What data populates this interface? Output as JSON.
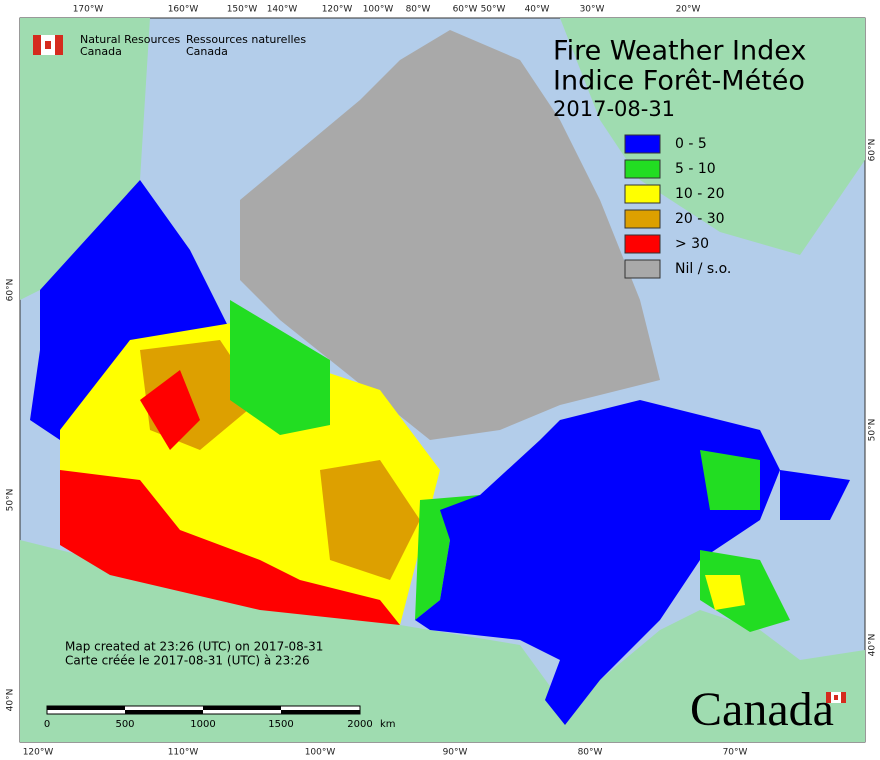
{
  "header": {
    "agency_en": [
      "Natural Resources",
      "Canada"
    ],
    "agency_fr": [
      "Ressources naturelles",
      "Canada"
    ]
  },
  "title": [
    "Fire Weather Index",
    "Indice Forêt-Météo"
  ],
  "date": "2017-08-31",
  "legend": [
    {
      "label": "0 - 5",
      "color": "#0000ff"
    },
    {
      "label": "5 - 10",
      "color": "#22dd22"
    },
    {
      "label": "10 - 20",
      "color": "#ffff00"
    },
    {
      "label": "20 - 30",
      "color": "#dda000"
    },
    {
      "label": "> 30",
      "color": "#ff0000"
    },
    {
      "label": "Nil / s.o.",
      "color": "#a9a9a9"
    }
  ],
  "top_longitudes": [
    "170°W",
    "160°W",
    "150°W",
    "140°W",
    "120°W",
    "100°W",
    "80°W",
    "60°W",
    "50°W",
    "40°W",
    "30°W",
    "20°W"
  ],
  "bottom_longitudes": [
    "120°W",
    "110°W",
    "100°W",
    "90°W",
    "80°W",
    "70°W"
  ],
  "left_latitudes": [
    "60°N",
    "50°N",
    "40°N"
  ],
  "right_latitudes": [
    "60°N",
    "50°N",
    "40°N"
  ],
  "notes": [
    "Map created at 23:26 (UTC) on 2017-08-31",
    "Carte créée le 2017-08-31 (UTC) à 23:26"
  ],
  "scale": {
    "labels": [
      "0",
      "500",
      "1000",
      "1500",
      "2000"
    ],
    "unit": "km"
  },
  "wordmark": "Canada"
}
